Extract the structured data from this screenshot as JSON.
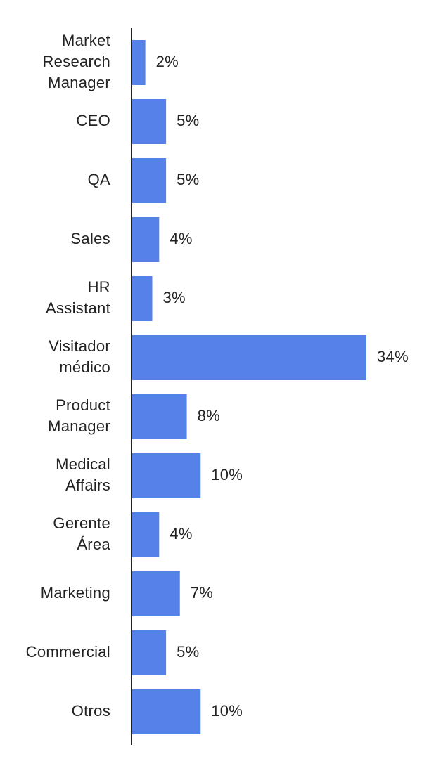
{
  "chart_data": {
    "type": "bar",
    "orientation": "horizontal",
    "categories": [
      "Market Research Manager",
      "CEO",
      "QA",
      "Sales",
      "HR Assistant",
      "Visitador médico",
      "Product Manager",
      "Medical Affairs",
      "Gerente Área",
      "Marketing",
      "Commercial",
      "Otros"
    ],
    "values": [
      2,
      5,
      5,
      4,
      3,
      34,
      8,
      10,
      4,
      7,
      5,
      10
    ],
    "value_labels": [
      "2%",
      "5%",
      "5%",
      "4%",
      "3%",
      "34%",
      "8%",
      "10%",
      "4%",
      "7%",
      "5%",
      "10%"
    ],
    "color": "#5581e8"
  }
}
